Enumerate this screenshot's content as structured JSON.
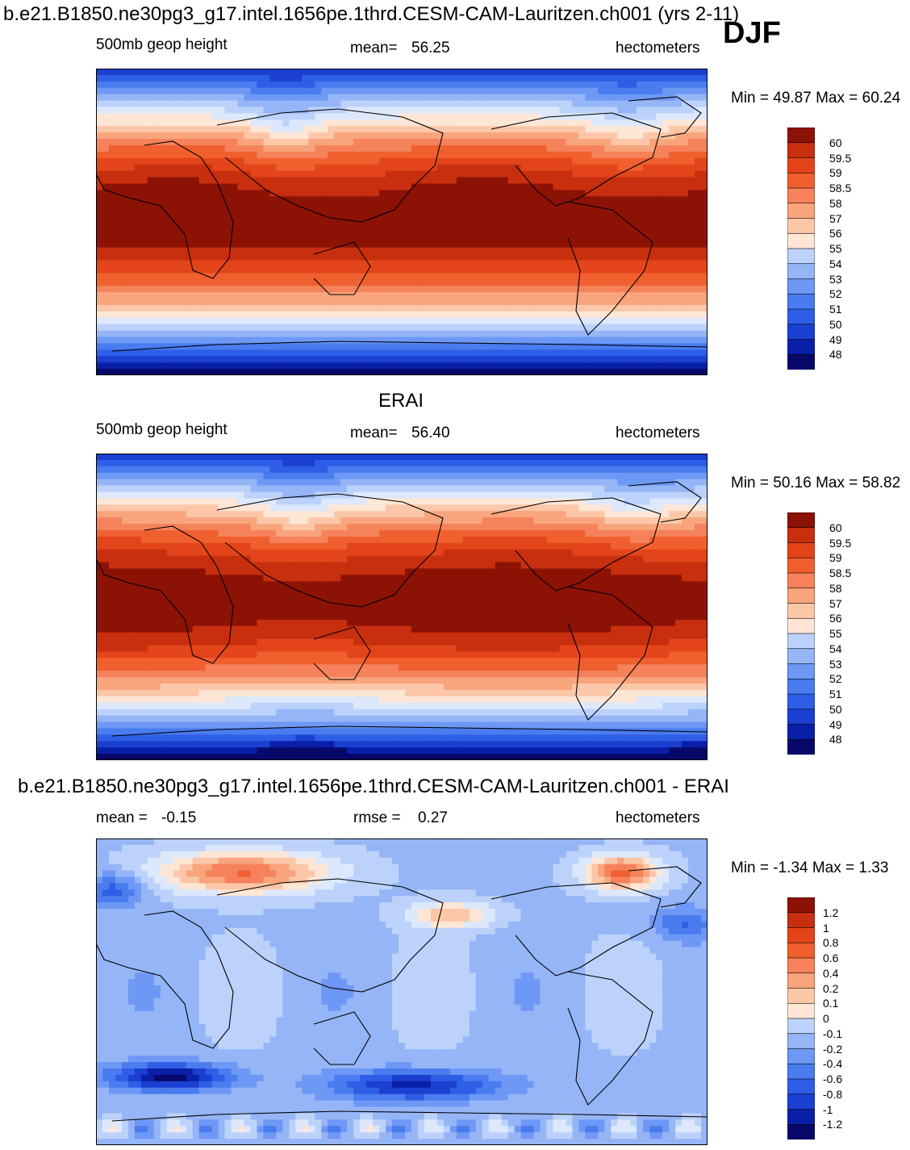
{
  "header": {
    "title": "b.e21.B1850.ne30pg3_g17.intel.1656pe.1thrd.CESM-CAM-Lauritzen.ch001 (yrs 2-11)",
    "season": "DJF"
  },
  "colors": {
    "levels_palette": [
      "#08086b",
      "#0a1fa8",
      "#1a3fd1",
      "#2f5ee6",
      "#4a7cf0",
      "#6e98f5",
      "#95b5f7",
      "#bcd2fa",
      "#dde8fc",
      "#fde6d6",
      "#fbc7a8",
      "#f8a47c",
      "#f5825a",
      "#f0602f",
      "#e4441a",
      "#c72f0e",
      "#8c1205"
    ]
  },
  "chart_data": [
    {
      "type": "heatmap",
      "panel": "model",
      "title": "",
      "variable": "500mb geop height",
      "mean_label": "mean=",
      "mean": "56.25",
      "units": "hectometers",
      "min_max_label": "Min =  49.87 Max =  60.24",
      "min": 49.87,
      "max": 60.24,
      "colorbar_ticks": [
        "60",
        "59.5",
        "59",
        "58.5",
        "58",
        "57",
        "56",
        "55",
        "54",
        "53",
        "52",
        "51",
        "50",
        "49",
        "48"
      ]
    },
    {
      "type": "heatmap",
      "panel": "obs",
      "title": "ERAI",
      "variable": "500mb geop height",
      "mean_label": "mean=",
      "mean": "56.40",
      "units": "hectometers",
      "min_max_label": "Min =  50.16 Max =  58.82",
      "min": 50.16,
      "max": 58.82,
      "colorbar_ticks": [
        "60",
        "59.5",
        "59",
        "58.5",
        "58",
        "57",
        "56",
        "55",
        "54",
        "53",
        "52",
        "51",
        "50",
        "49",
        "48"
      ]
    },
    {
      "type": "heatmap",
      "panel": "difference",
      "title": "b.e21.B1850.ne30pg3_g17.intel.1656pe.1thrd.CESM-CAM-Lauritzen.ch001 - ERAI",
      "mean_label": "mean =",
      "mean": "-0.15",
      "rmse_label": "rmse =",
      "rmse": "0.27",
      "units": "hectometers",
      "min_max_label": "Min =  -1.34 Max =   1.33",
      "min": -1.34,
      "max": 1.33,
      "colorbar_ticks": [
        "1.2",
        "1",
        "0.8",
        "0.6",
        "0.4",
        "0.2",
        "0.1",
        "0",
        "-0.1",
        "-0.2",
        "-0.4",
        "-0.6",
        "-0.8",
        "-1",
        "-1.2"
      ]
    }
  ]
}
